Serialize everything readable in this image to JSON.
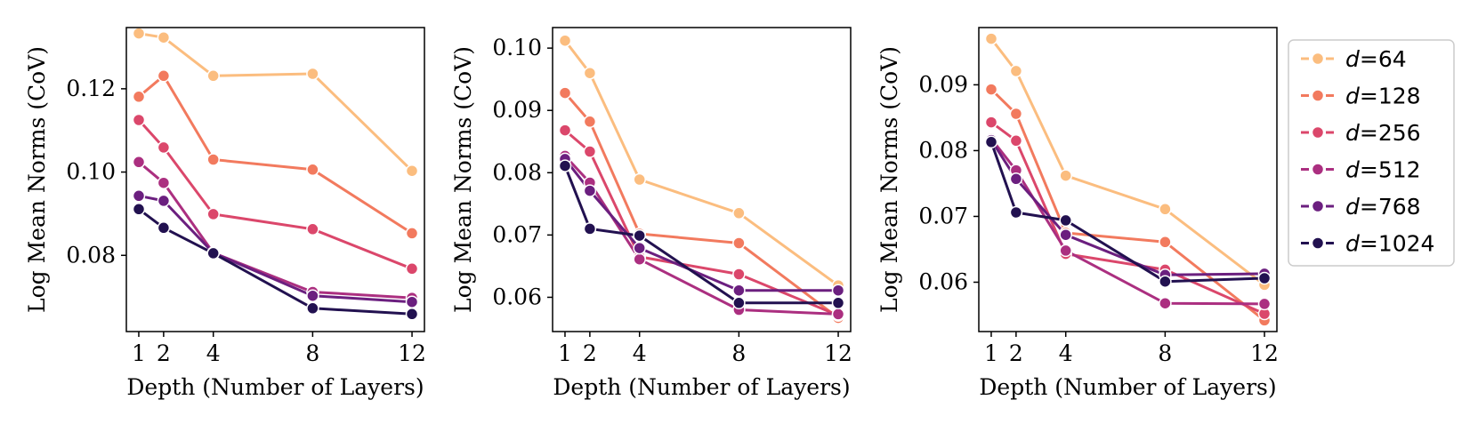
{
  "chart_data": [
    {
      "type": "line",
      "title": "",
      "xlabel": "Depth (Number of Layers)",
      "ylabel": "Log Mean Norms (CoV)",
      "x": [
        1,
        2,
        4,
        8,
        12
      ],
      "xticks": [
        "1",
        "2",
        "4",
        "8",
        "12"
      ],
      "yticks": [
        0.08,
        0.1,
        0.12
      ],
      "ytick_labels": [
        "0.08",
        "0.10",
        "0.12"
      ],
      "xlim": [
        0.5,
        12.5
      ],
      "ylim": [
        0.0617,
        0.1347
      ],
      "grid": false,
      "series": [
        {
          "name": "d=64",
          "values": [
            0.1333,
            0.1323,
            0.1231,
            0.1236,
            0.1003
          ]
        },
        {
          "name": "d=128",
          "values": [
            0.1181,
            0.1231,
            0.103,
            0.1006,
            0.0853
          ]
        },
        {
          "name": "d=256",
          "values": [
            0.1125,
            0.1059,
            0.0899,
            0.0863,
            0.0768
          ]
        },
        {
          "name": "d=512",
          "values": [
            0.1024,
            0.0974,
            0.0806,
            0.0712,
            0.0698
          ]
        },
        {
          "name": "d=768",
          "values": [
            0.0943,
            0.0931,
            0.0806,
            0.0703,
            0.0688
          ]
        },
        {
          "name": "d=1024",
          "values": [
            0.0911,
            0.0866,
            0.0805,
            0.0673,
            0.0659
          ]
        }
      ]
    },
    {
      "type": "line",
      "title": "",
      "xlabel": "Depth (Number of Layers)",
      "ylabel": "Log Mean Norms (CoV)",
      "x": [
        1,
        2,
        4,
        8,
        12
      ],
      "xticks": [
        "1",
        "2",
        "4",
        "8",
        "12"
      ],
      "yticks": [
        0.06,
        0.07,
        0.08,
        0.09,
        0.1
      ],
      "ytick_labels": [
        "0.06",
        "0.07",
        "0.08",
        "0.09",
        "0.10"
      ],
      "xlim": [
        0.5,
        12.5
      ],
      "ylim": [
        0.0545,
        0.1033
      ],
      "grid": false,
      "series": [
        {
          "name": "d=64",
          "values": [
            0.1012,
            0.096,
            0.0789,
            0.0735,
            0.0619
          ]
        },
        {
          "name": "d=128",
          "values": [
            0.0928,
            0.0882,
            0.0702,
            0.0687,
            0.0567
          ]
        },
        {
          "name": "d=256",
          "values": [
            0.0868,
            0.0834,
            0.0665,
            0.0637,
            0.0571
          ]
        },
        {
          "name": "d=512",
          "values": [
            0.0827,
            0.0784,
            0.0661,
            0.058,
            0.0573
          ]
        },
        {
          "name": "d=768",
          "values": [
            0.0822,
            0.0771,
            0.0679,
            0.0611,
            0.0611
          ]
        },
        {
          "name": "d=1024",
          "values": [
            0.0811,
            0.071,
            0.0699,
            0.0591,
            0.0591
          ]
        }
      ]
    },
    {
      "type": "line",
      "title": "",
      "xlabel": "Depth (Number of Layers)",
      "ylabel": "Log Mean Norms (CoV)",
      "x": [
        1,
        2,
        4,
        8,
        12
      ],
      "xticks": [
        "1",
        "2",
        "4",
        "8",
        "12"
      ],
      "yticks": [
        0.06,
        0.07,
        0.08,
        0.09
      ],
      "ytick_labels": [
        "0.06",
        "0.07",
        "0.08",
        "0.09"
      ],
      "xlim": [
        0.5,
        12.5
      ],
      "ylim": [
        0.0525,
        0.0987
      ],
      "grid": false,
      "series": [
        {
          "name": "d=64",
          "values": [
            0.097,
            0.0921,
            0.0762,
            0.0711,
            0.0596
          ]
        },
        {
          "name": "d=128",
          "values": [
            0.0893,
            0.0856,
            0.0675,
            0.0661,
            0.0542
          ]
        },
        {
          "name": "d=256",
          "values": [
            0.0843,
            0.0815,
            0.0643,
            0.0619,
            0.0552
          ]
        },
        {
          "name": "d=512",
          "values": [
            0.0818,
            0.077,
            0.0648,
            0.0568,
            0.0567
          ]
        },
        {
          "name": "d=768",
          "values": [
            0.0816,
            0.0757,
            0.0672,
            0.0611,
            0.0613
          ]
        },
        {
          "name": "d=1024",
          "values": [
            0.0813,
            0.0706,
            0.0694,
            0.0601,
            0.0606
          ]
        }
      ]
    }
  ],
  "legend": {
    "placement": "right",
    "entries": [
      {
        "prefix": "d",
        "suffix": "=64",
        "color": "#FBBD7F"
      },
      {
        "prefix": "d",
        "suffix": "=128",
        "color": "#F27A5E"
      },
      {
        "prefix": "d",
        "suffix": "=256",
        "color": "#DB476B"
      },
      {
        "prefix": "d",
        "suffix": "=512",
        "color": "#AB2F80"
      },
      {
        "prefix": "d",
        "suffix": "=768",
        "color": "#6B1F7F"
      },
      {
        "prefix": "d",
        "suffix": "=1024",
        "color": "#221150"
      }
    ]
  }
}
